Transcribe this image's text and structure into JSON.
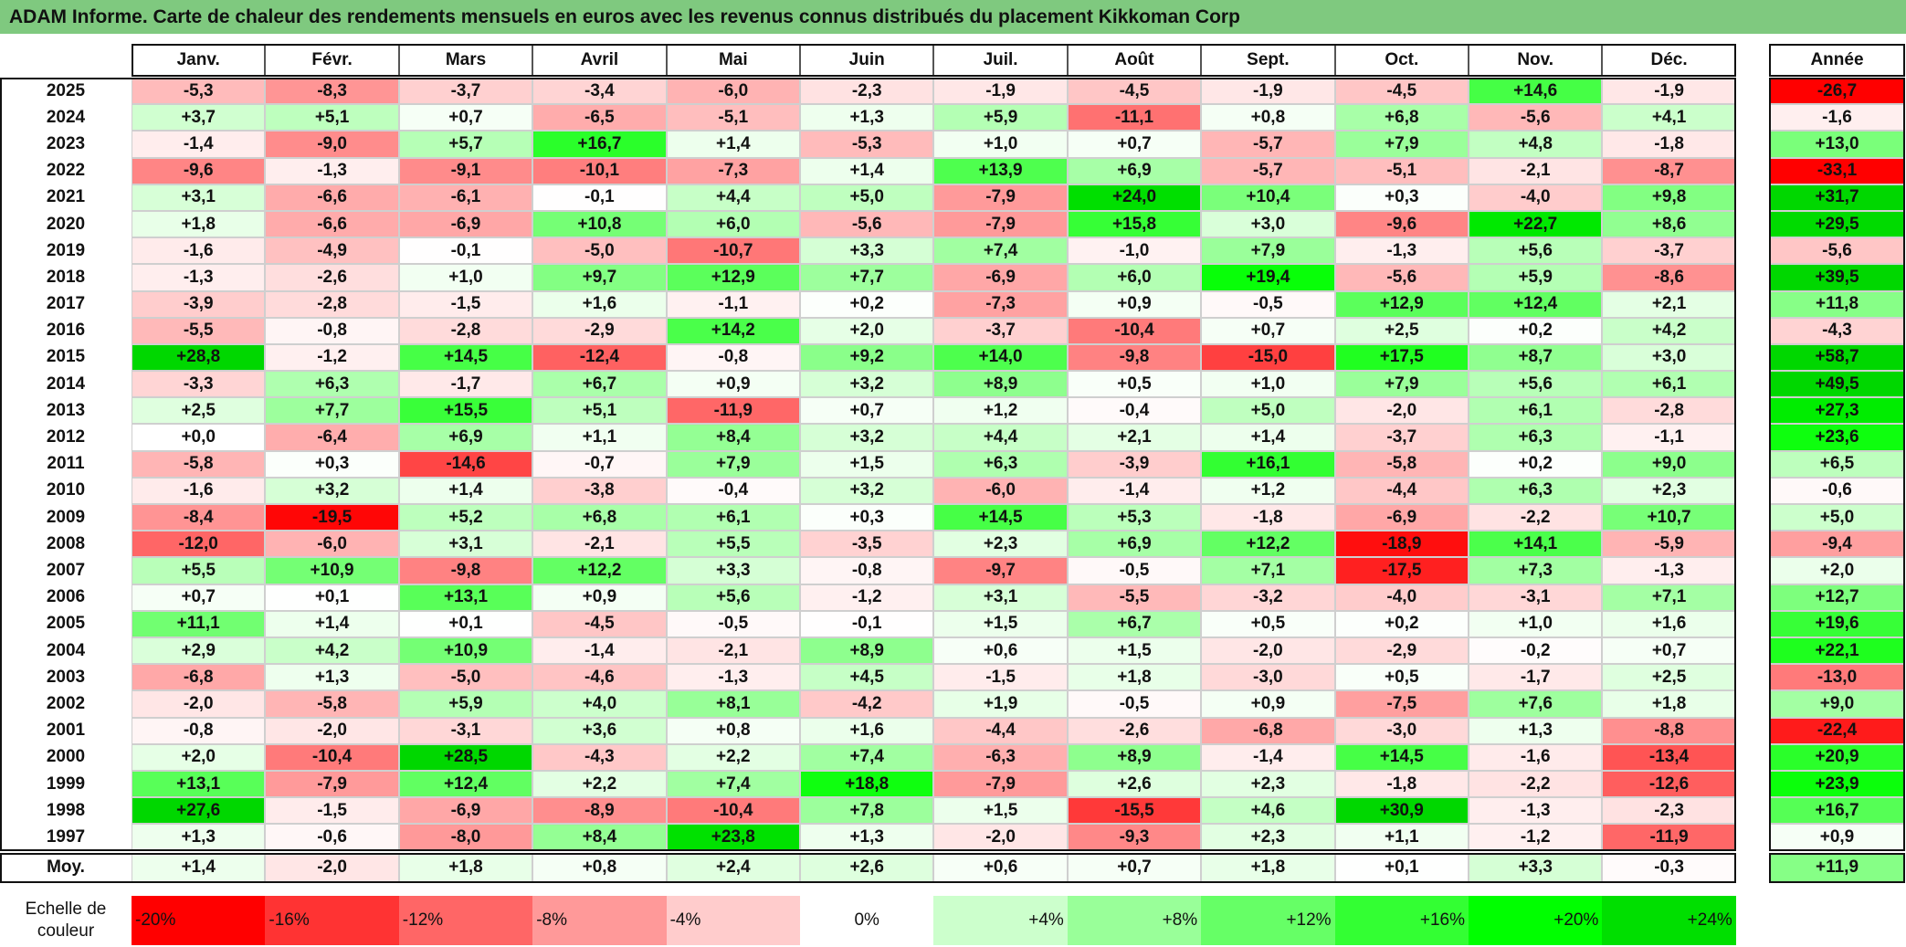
{
  "title": "ADAM Informe. Carte de chaleur des rendements mensuels en euros avec les revenus connus distribués du placement Kikkoman Corp",
  "table": {
    "columns": [
      "Janv.",
      "Févr.",
      "Mars",
      "Avril",
      "Mai",
      "Juin",
      "Juil.",
      "Août",
      "Sept.",
      "Oct.",
      "Nov.",
      "Déc."
    ],
    "total_header": "Année",
    "rows": [
      {
        "label": "2025",
        "cells": [
          "-5,3",
          "-8,3",
          "-3,7",
          "-3,4",
          "-6,0",
          "-2,3",
          "-1,9",
          "-4,5",
          "-1,9",
          "-4,5",
          "+14,6",
          "-1,9"
        ],
        "total": "-26,7"
      },
      {
        "label": "2024",
        "cells": [
          "+3,7",
          "+5,1",
          "+0,7",
          "-6,5",
          "-5,1",
          "+1,3",
          "+5,9",
          "-11,1",
          "+0,8",
          "+6,8",
          "-5,6",
          "+4,1"
        ],
        "total": "-1,6"
      },
      {
        "label": "2023",
        "cells": [
          "-1,4",
          "-9,0",
          "+5,7",
          "+16,7",
          "+1,4",
          "-5,3",
          "+1,0",
          "+0,7",
          "-5,7",
          "+7,9",
          "+4,8",
          "-1,8"
        ],
        "total": "+13,0"
      },
      {
        "label": "2022",
        "cells": [
          "-9,6",
          "-1,3",
          "-9,1",
          "-10,1",
          "-7,3",
          "+1,4",
          "+13,9",
          "+6,9",
          "-5,7",
          "-5,1",
          "-2,1",
          "-8,7"
        ],
        "total": "-33,1"
      },
      {
        "label": "2021",
        "cells": [
          "+3,1",
          "-6,6",
          "-6,1",
          "-0,1",
          "+4,4",
          "+5,0",
          "-7,9",
          "+24,0",
          "+10,4",
          "+0,3",
          "-4,0",
          "+9,8"
        ],
        "total": "+31,7"
      },
      {
        "label": "2020",
        "cells": [
          "+1,8",
          "-6,6",
          "-6,9",
          "+10,8",
          "+6,0",
          "-5,6",
          "-7,9",
          "+15,8",
          "+3,0",
          "-9,6",
          "+22,7",
          "+8,6"
        ],
        "total": "+29,5"
      },
      {
        "label": "2019",
        "cells": [
          "-1,6",
          "-4,9",
          "-0,1",
          "-5,0",
          "-10,7",
          "+3,3",
          "+7,4",
          "-1,0",
          "+7,9",
          "-1,3",
          "+5,6",
          "-3,7"
        ],
        "total": "-5,6"
      },
      {
        "label": "2018",
        "cells": [
          "-1,3",
          "-2,6",
          "+1,0",
          "+9,7",
          "+12,9",
          "+7,7",
          "-6,9",
          "+6,0",
          "+19,4",
          "-5,6",
          "+5,9",
          "-8,6"
        ],
        "total": "+39,5"
      },
      {
        "label": "2017",
        "cells": [
          "-3,9",
          "-2,8",
          "-1,5",
          "+1,6",
          "-1,1",
          "+0,2",
          "-7,3",
          "+0,9",
          "-0,5",
          "+12,9",
          "+12,4",
          "+2,1"
        ],
        "total": "+11,8"
      },
      {
        "label": "2016",
        "cells": [
          "-5,5",
          "-0,8",
          "-2,8",
          "-2,9",
          "+14,2",
          "+2,0",
          "-3,7",
          "-10,4",
          "+0,7",
          "+2,5",
          "+0,2",
          "+4,2"
        ],
        "total": "-4,3"
      },
      {
        "label": "2015",
        "cells": [
          "+28,8",
          "-1,2",
          "+14,5",
          "-12,4",
          "-0,8",
          "+9,2",
          "+14,0",
          "-9,8",
          "-15,0",
          "+17,5",
          "+8,7",
          "+3,0"
        ],
        "total": "+58,7"
      },
      {
        "label": "2014",
        "cells": [
          "-3,3",
          "+6,3",
          "-1,7",
          "+6,7",
          "+0,9",
          "+3,2",
          "+8,9",
          "+0,5",
          "+1,0",
          "+7,9",
          "+5,6",
          "+6,1"
        ],
        "total": "+49,5"
      },
      {
        "label": "2013",
        "cells": [
          "+2,5",
          "+7,7",
          "+15,5",
          "+5,1",
          "-11,9",
          "+0,7",
          "+1,2",
          "-0,4",
          "+5,0",
          "-2,0",
          "+6,1",
          "-2,8"
        ],
        "total": "+27,3"
      },
      {
        "label": "2012",
        "cells": [
          "+0,0",
          "-6,4",
          "+6,9",
          "+1,1",
          "+8,4",
          "+3,2",
          "+4,4",
          "+2,1",
          "+1,4",
          "-3,7",
          "+6,3",
          "-1,1"
        ],
        "total": "+23,6"
      },
      {
        "label": "2011",
        "cells": [
          "-5,8",
          "+0,3",
          "-14,6",
          "-0,7",
          "+7,9",
          "+1,5",
          "+6,3",
          "-3,9",
          "+16,1",
          "-5,8",
          "+0,2",
          "+9,0"
        ],
        "total": "+6,5"
      },
      {
        "label": "2010",
        "cells": [
          "-1,6",
          "+3,2",
          "+1,4",
          "-3,8",
          "-0,4",
          "+3,2",
          "-6,0",
          "-1,4",
          "+1,2",
          "-4,4",
          "+6,3",
          "+2,3"
        ],
        "total": "-0,6"
      },
      {
        "label": "2009",
        "cells": [
          "-8,4",
          "-19,5",
          "+5,2",
          "+6,8",
          "+6,1",
          "+0,3",
          "+14,5",
          "+5,3",
          "-1,8",
          "-6,9",
          "-2,2",
          "+10,7"
        ],
        "total": "+5,0"
      },
      {
        "label": "2008",
        "cells": [
          "-12,0",
          "-6,0",
          "+3,1",
          "-2,1",
          "+5,5",
          "-3,5",
          "+2,3",
          "+6,9",
          "+12,2",
          "-18,9",
          "+14,1",
          "-5,9"
        ],
        "total": "-9,4"
      },
      {
        "label": "2007",
        "cells": [
          "+5,5",
          "+10,9",
          "-9,8",
          "+12,2",
          "+3,3",
          "-0,8",
          "-9,7",
          "-0,5",
          "+7,1",
          "-17,5",
          "+7,3",
          "-1,3"
        ],
        "total": "+2,0"
      },
      {
        "label": "2006",
        "cells": [
          "+0,7",
          "+0,1",
          "+13,1",
          "+0,9",
          "+5,6",
          "-1,2",
          "+3,1",
          "-5,5",
          "-3,2",
          "-4,0",
          "-3,1",
          "+7,1"
        ],
        "total": "+12,7"
      },
      {
        "label": "2005",
        "cells": [
          "+11,1",
          "+1,4",
          "+0,1",
          "-4,5",
          "-0,5",
          "-0,1",
          "+1,5",
          "+6,7",
          "+0,5",
          "+0,2",
          "+1,0",
          "+1,6"
        ],
        "total": "+19,6"
      },
      {
        "label": "2004",
        "cells": [
          "+2,9",
          "+4,2",
          "+10,9",
          "-1,4",
          "-2,1",
          "+8,9",
          "+0,6",
          "+1,5",
          "-2,0",
          "-2,9",
          "-0,2",
          "+0,7"
        ],
        "total": "+22,1"
      },
      {
        "label": "2003",
        "cells": [
          "-6,8",
          "+1,3",
          "-5,0",
          "-4,6",
          "-1,3",
          "+4,5",
          "-1,5",
          "+1,8",
          "-3,0",
          "+0,5",
          "-1,7",
          "+2,5"
        ],
        "total": "-13,0"
      },
      {
        "label": "2002",
        "cells": [
          "-2,0",
          "-5,8",
          "+5,9",
          "+4,0",
          "+8,1",
          "-4,2",
          "+1,9",
          "-0,5",
          "+0,9",
          "-7,5",
          "+7,6",
          "+1,8"
        ],
        "total": "+9,0"
      },
      {
        "label": "2001",
        "cells": [
          "-0,8",
          "-2,0",
          "-3,1",
          "+3,6",
          "+0,8",
          "+1,6",
          "-4,4",
          "-2,6",
          "-6,8",
          "-3,0",
          "+1,3",
          "-8,8"
        ],
        "total": "-22,4"
      },
      {
        "label": "2000",
        "cells": [
          "+2,0",
          "-10,4",
          "+28,5",
          "-4,3",
          "+2,2",
          "+7,4",
          "-6,3",
          "+8,9",
          "-1,4",
          "+14,5",
          "-1,6",
          "-13,4"
        ],
        "total": "+20,9"
      },
      {
        "label": "1999",
        "cells": [
          "+13,1",
          "-7,9",
          "+12,4",
          "+2,2",
          "+7,4",
          "+18,8",
          "-7,9",
          "+2,6",
          "+2,3",
          "-1,8",
          "-2,2",
          "-12,6"
        ],
        "total": "+23,9"
      },
      {
        "label": "1998",
        "cells": [
          "+27,6",
          "-1,5",
          "-6,9",
          "-8,9",
          "-10,4",
          "+7,8",
          "+1,5",
          "-15,5",
          "+4,6",
          "+30,9",
          "-1,3",
          "-2,3"
        ],
        "total": "+16,7"
      },
      {
        "label": "1997",
        "cells": [
          "+1,3",
          "-0,6",
          "-8,0",
          "+8,4",
          "+23,8",
          "+1,3",
          "-2,0",
          "-9,3",
          "+2,3",
          "+1,1",
          "-1,2",
          "-11,9"
        ],
        "total": "+0,9"
      }
    ],
    "average": {
      "label": "Moy.",
      "cells": [
        "+1,4",
        "-2,0",
        "+1,8",
        "+0,8",
        "+2,4",
        "+2,6",
        "+0,6",
        "+0,7",
        "+1,8",
        "+0,1",
        "+3,3",
        "-0,3"
      ],
      "total": "+11,9"
    }
  },
  "legend": {
    "label": "Echelle de couleur",
    "steps": [
      "-20%",
      "-16%",
      "-12%",
      "-8%",
      "-4%",
      "0%",
      "+4%",
      "+8%",
      "+12%",
      "+16%",
      "+20%",
      "+24%"
    ]
  }
}
